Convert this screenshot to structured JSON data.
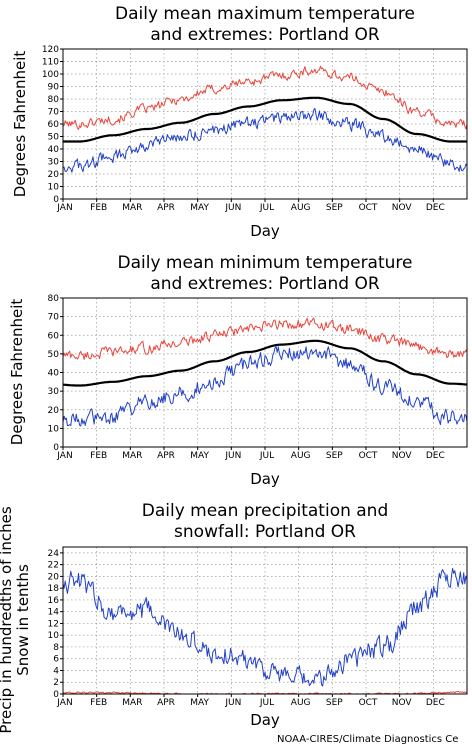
{
  "credit": "NOAA-CIRES/Climate Diagnostics Ce",
  "chart_data": [
    {
      "type": "line",
      "title_lines": [
        "Daily mean maximum temperature",
        "and extremes: Portland OR"
      ],
      "xlabel": "Day",
      "ylabel": "Degrees Fahrenheit",
      "months": [
        "JAN",
        "FEB",
        "MAR",
        "APR",
        "MAY",
        "JUN",
        "JUL",
        "AUG",
        "SEP",
        "OCT",
        "NOV",
        "DEC"
      ],
      "ylim": [
        0,
        120
      ],
      "yticks": [
        0,
        10,
        20,
        30,
        40,
        50,
        60,
        70,
        80,
        90,
        100,
        110,
        120
      ],
      "grid": true,
      "colors": {
        "record_high": "#e8463c",
        "mean": "#000000",
        "record_low": "#2241c8"
      },
      "monthly": {
        "record_high": [
          60,
          64,
          72,
          80,
          88,
          94,
          99,
          103,
          97,
          86,
          70,
          60
        ],
        "mean": [
          46,
          51,
          56,
          61,
          68,
          74,
          79,
          81,
          76,
          64,
          52,
          46
        ],
        "record_low": [
          26,
          34,
          43,
          50,
          55,
          61,
          65,
          67,
          60,
          50,
          40,
          28
        ]
      }
    },
    {
      "type": "line",
      "title_lines": [
        "Daily mean minimum temperature",
        "and extremes: Portland OR"
      ],
      "xlabel": "Day",
      "ylabel": "Degrees Fahrenheit",
      "months": [
        "JAN",
        "FEB",
        "MAR",
        "APR",
        "MAY",
        "JUN",
        "JUL",
        "AUG",
        "SEP",
        "OCT",
        "NOV",
        "DEC"
      ],
      "ylim": [
        0,
        80
      ],
      "yticks": [
        0,
        10,
        20,
        30,
        40,
        50,
        60,
        70,
        80
      ],
      "grid": true,
      "colors": {
        "record_high": "#e8463c",
        "mean": "#000000",
        "record_low": "#2241c8"
      },
      "monthly": {
        "record_high": [
          49,
          51,
          53,
          56,
          60,
          63,
          66,
          66,
          63,
          58,
          54,
          50
        ],
        "mean": [
          33,
          35,
          38,
          41,
          46,
          51,
          55,
          57,
          53,
          46,
          39,
          34
        ],
        "record_low": [
          15,
          16,
          24,
          29,
          36,
          44,
          50,
          52,
          44,
          33,
          24,
          15
        ]
      }
    },
    {
      "type": "line",
      "title_lines": [
        "Daily mean precipitation and",
        "snowfall: Portland OR"
      ],
      "xlabel": "Day",
      "ylabel_lines": [
        "Precip in hundredths of inches",
        "Snow in tenths"
      ],
      "months": [
        "JAN",
        "FEB",
        "MAR",
        "APR",
        "MAY",
        "JUN",
        "JUL",
        "AUG",
        "SEP",
        "OCT",
        "NOV",
        "DEC"
      ],
      "ylim": [
        0,
        25
      ],
      "yticks": [
        0,
        2,
        4,
        6,
        8,
        10,
        12,
        14,
        16,
        18,
        20,
        22,
        24
      ],
      "grid": true,
      "colors": {
        "precipitation": "#2241c8",
        "snowfall": "#e8463c"
      },
      "monthly": {
        "precipitation": [
          19,
          14,
          14,
          10,
          7,
          6,
          3,
          2,
          6,
          8,
          15,
          20
        ],
        "snowfall": [
          0.3,
          0.2,
          0.1,
          0,
          0,
          0,
          0,
          0,
          0,
          0,
          0.1,
          0.3
        ]
      }
    }
  ]
}
